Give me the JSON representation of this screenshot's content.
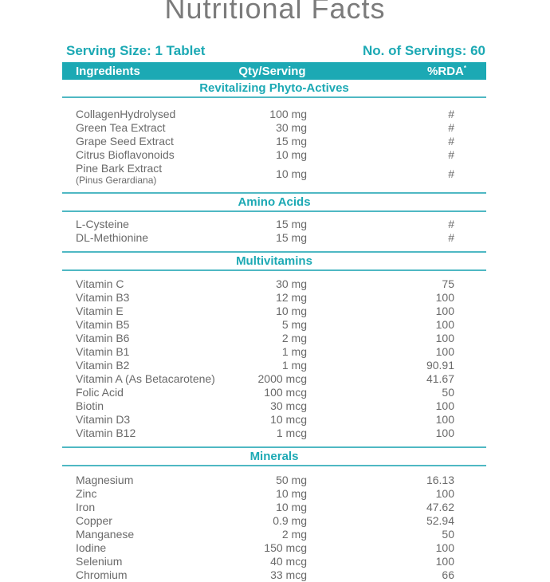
{
  "title": "Nutritional Facts",
  "serving": {
    "size_label": "Serving Size: 1 Tablet",
    "servings_label": "No. of Servings: 60"
  },
  "table": {
    "headers": {
      "ingredients": "Ingredients",
      "qty": "Qty/Serving",
      "rda": "%RDA",
      "rda_sup": "*"
    },
    "sections": [
      {
        "name": "Revitalizing Phyto-Actives",
        "rows": [
          {
            "ingredient": "CollagenHydrolysed",
            "qty": "100 mg",
            "rda": "#"
          },
          {
            "ingredient": "Green Tea Extract",
            "qty": "30 mg",
            "rda": "#"
          },
          {
            "ingredient": "Grape Seed Extract",
            "qty": "15 mg",
            "rda": "#"
          },
          {
            "ingredient": "Citrus Bioflavonoids",
            "qty": "10 mg",
            "rda": "#"
          },
          {
            "ingredient": "Pine Bark Extract",
            "sub": "(Pinus Gerardiana)",
            "qty": "10 mg",
            "rda": "#"
          }
        ]
      },
      {
        "name": "Amino Acids",
        "rows": [
          {
            "ingredient": "L-Cysteine",
            "qty": "15 mg",
            "rda": "#"
          },
          {
            "ingredient": "DL-Methionine",
            "qty": "15 mg",
            "rda": "#"
          }
        ]
      },
      {
        "name": "Multivitamins",
        "rows": [
          {
            "ingredient": "Vitamin C",
            "qty": "30 mg",
            "rda": "75"
          },
          {
            "ingredient": "Vitamin B3",
            "qty": "12 mg",
            "rda": "100"
          },
          {
            "ingredient": "Vitamin E",
            "qty": "10 mg",
            "rda": "100"
          },
          {
            "ingredient": "Vitamin B5",
            "qty": "5 mg",
            "rda": "100"
          },
          {
            "ingredient": "Vitamin B6",
            "qty": "2 mg",
            "rda": "100"
          },
          {
            "ingredient": "Vitamin B1",
            "qty": "1 mg",
            "rda": "100"
          },
          {
            "ingredient": "Vitamin B2",
            "qty": "1 mg",
            "rda": "90.91"
          },
          {
            "ingredient": "Vitamin A (As Betacarotene)",
            "qty": "2000 mcg",
            "rda": "41.67"
          },
          {
            "ingredient": "Folic Acid",
            "qty": "100 mcg",
            "rda": "50"
          },
          {
            "ingredient": "Biotin",
            "qty": "30 mcg",
            "rda": "100"
          },
          {
            "ingredient": "Vitamin D3",
            "qty": "10 mcg",
            "rda": "100"
          },
          {
            "ingredient": "Vitamin B12",
            "qty": "1 mcg",
            "rda": "100"
          }
        ]
      },
      {
        "name": "Minerals",
        "rows": [
          {
            "ingredient": "Magnesium",
            "qty": "50 mg",
            "rda": "16.13"
          },
          {
            "ingredient": "Zinc",
            "qty": "10 mg",
            "rda": "100"
          },
          {
            "ingredient": "Iron",
            "qty": "10 mg",
            "rda": "47.62"
          },
          {
            "ingredient": "Copper",
            "qty": "0.9 mg",
            "rda": "52.94"
          },
          {
            "ingredient": "Manganese",
            "qty": "2 mg",
            "rda": "50"
          },
          {
            "ingredient": "Iodine",
            "qty": "150 mcg",
            "rda": "100"
          },
          {
            "ingredient": "Selenium",
            "qty": "40 mcg",
            "rda": "100"
          },
          {
            "ingredient": "Chromium",
            "qty": "33 mcg",
            "rda": "66"
          }
        ]
      }
    ]
  },
  "colors": {
    "teal": "#1CA9B4",
    "rule_line": "#4FB8C3",
    "body_text": "#6A6A6A",
    "title_text": "#7B7B7B"
  }
}
